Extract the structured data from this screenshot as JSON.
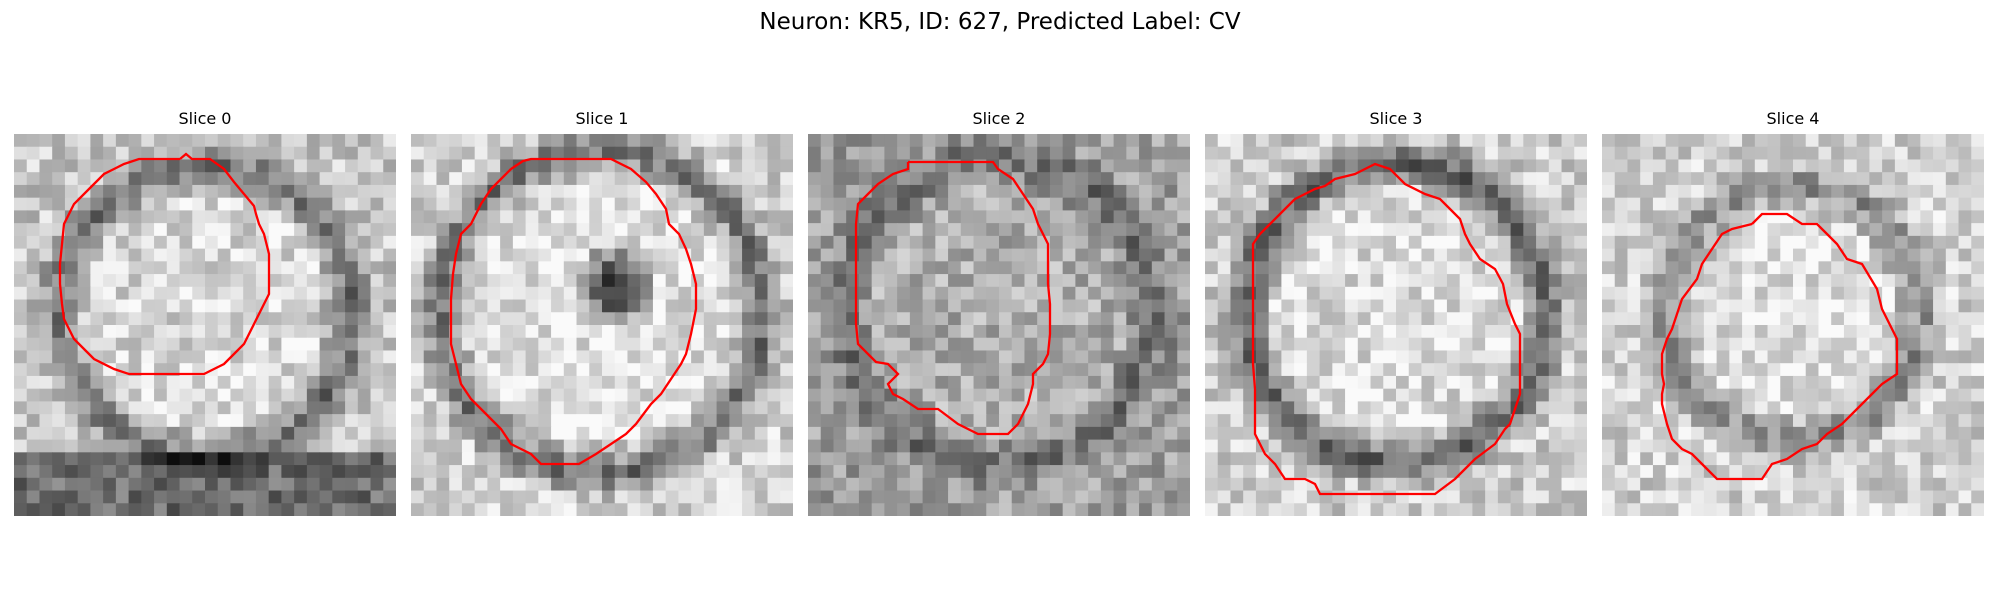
{
  "figure": {
    "title": "Neuron: KR5, ID: 627, Predicted Label: CV"
  },
  "panels": [
    {
      "title": "Slice 0",
      "seed": 11,
      "base": 0.78,
      "inner_r": 0.31,
      "ring_dark": 0.35,
      "bottom_dark": true,
      "hole": false,
      "contour_color": "#ff0000"
    },
    {
      "title": "Slice 1",
      "seed": 23,
      "base": 0.82,
      "inner_r": 0.35,
      "ring_dark": 0.4,
      "bottom_dark": false,
      "hole": true,
      "contour_color": "#ff0000"
    },
    {
      "title": "Slice 2",
      "seed": 37,
      "base": 0.62,
      "inner_r": 0.33,
      "ring_dark": 0.2,
      "bottom_dark": false,
      "hole": false,
      "contour_color": "#ff0000"
    },
    {
      "title": "Slice 3",
      "seed": 41,
      "base": 0.8,
      "inner_r": 0.32,
      "ring_dark": 0.45,
      "bottom_dark": false,
      "hole": false,
      "contour_color": "#ff0000"
    },
    {
      "title": "Slice 4",
      "seed": 53,
      "base": 0.82,
      "inner_r": 0.26,
      "ring_dark": 0.3,
      "bottom_dark": false,
      "hole": false,
      "contour_color": "#ff0000"
    }
  ]
}
